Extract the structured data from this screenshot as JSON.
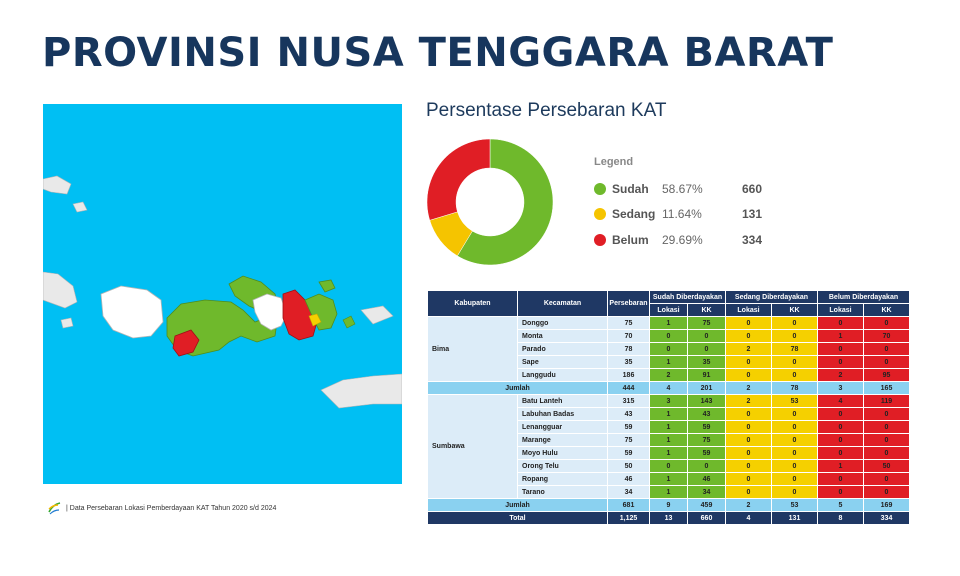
{
  "page": {
    "title": "PROVINSI NUSA TENGGARA BARAT"
  },
  "map": {
    "background_color": "#00bff3",
    "status_colors": {
      "sudah": "#6fb92c",
      "sedang": "#f5d000",
      "belum": "#e01e25"
    }
  },
  "source_note": "| Data Persebaran Lokasi Pemberdayaan KAT Tahun 2020 s/d 2024",
  "chart": {
    "title": "Persentase Persebaran KAT",
    "legend_title": "Legend",
    "legend": [
      {
        "name": "Sudah",
        "percent": "58.67%",
        "kk": "660",
        "color": "#6fb92c"
      },
      {
        "name": "Sedang",
        "percent": "11.64%",
        "kk": "131",
        "color": "#f5c400"
      },
      {
        "name": "Belum",
        "percent": "29.69%",
        "kk": "334",
        "color": "#e01e25"
      }
    ]
  },
  "chart_data": {
    "type": "pie",
    "categories": [
      "Sudah",
      "Sedang",
      "Belum"
    ],
    "values": [
      58.67,
      11.64,
      29.69
    ],
    "colors": [
      "#6fb92c",
      "#f5c400",
      "#e01e25"
    ],
    "title": "Persentase Persebaran KAT",
    "legend_position": "right"
  },
  "table": {
    "headers": {
      "kabupaten": "Kabupaten",
      "kecamatan": "Kecamatan",
      "persebaran": "Persebaran",
      "sudah": "Sudah Diberdayakan",
      "sedang": "Sedang Diberdayakan",
      "belum": "Belum Diberdayakan",
      "lokasi": "Lokasi",
      "kk": "KK"
    },
    "groups": [
      {
        "kabupaten": "Bima",
        "rows": [
          {
            "kecamatan": "Donggo",
            "persebaran": "75",
            "sudah_lokasi": "1",
            "sudah_kk": "75",
            "sedang_lokasi": "0",
            "sedang_kk": "0",
            "belum_lokasi": "0",
            "belum_kk": "0"
          },
          {
            "kecamatan": "Monta",
            "persebaran": "70",
            "sudah_lokasi": "0",
            "sudah_kk": "0",
            "sedang_lokasi": "0",
            "sedang_kk": "0",
            "belum_lokasi": "1",
            "belum_kk": "70"
          },
          {
            "kecamatan": "Parado",
            "persebaran": "78",
            "sudah_lokasi": "0",
            "sudah_kk": "0",
            "sedang_lokasi": "2",
            "sedang_kk": "78",
            "belum_lokasi": "0",
            "belum_kk": "0"
          },
          {
            "kecamatan": "Sape",
            "persebaran": "35",
            "sudah_lokasi": "1",
            "sudah_kk": "35",
            "sedang_lokasi": "0",
            "sedang_kk": "0",
            "belum_lokasi": "0",
            "belum_kk": "0"
          },
          {
            "kecamatan": "Langgudu",
            "persebaran": "186",
            "sudah_lokasi": "2",
            "sudah_kk": "91",
            "sedang_lokasi": "0",
            "sedang_kk": "0",
            "belum_lokasi": "2",
            "belum_kk": "95"
          }
        ],
        "jumlah": {
          "label": "Jumlah",
          "persebaran": "444",
          "sudah_lokasi": "4",
          "sudah_kk": "201",
          "sedang_lokasi": "2",
          "sedang_kk": "78",
          "belum_lokasi": "3",
          "belum_kk": "165"
        }
      },
      {
        "kabupaten": "Sumbawa",
        "rows": [
          {
            "kecamatan": "Batu Lanteh",
            "persebaran": "315",
            "sudah_lokasi": "3",
            "sudah_kk": "143",
            "sedang_lokasi": "2",
            "sedang_kk": "53",
            "belum_lokasi": "4",
            "belum_kk": "119"
          },
          {
            "kecamatan": "Labuhan Badas",
            "persebaran": "43",
            "sudah_lokasi": "1",
            "sudah_kk": "43",
            "sedang_lokasi": "0",
            "sedang_kk": "0",
            "belum_lokasi": "0",
            "belum_kk": "0"
          },
          {
            "kecamatan": "Lenangguar",
            "persebaran": "59",
            "sudah_lokasi": "1",
            "sudah_kk": "59",
            "sedang_lokasi": "0",
            "sedang_kk": "0",
            "belum_lokasi": "0",
            "belum_kk": "0"
          },
          {
            "kecamatan": "Marange",
            "persebaran": "75",
            "sudah_lokasi": "1",
            "sudah_kk": "75",
            "sedang_lokasi": "0",
            "sedang_kk": "0",
            "belum_lokasi": "0",
            "belum_kk": "0"
          },
          {
            "kecamatan": "Moyo Hulu",
            "persebaran": "59",
            "sudah_lokasi": "1",
            "sudah_kk": "59",
            "sedang_lokasi": "0",
            "sedang_kk": "0",
            "belum_lokasi": "0",
            "belum_kk": "0"
          },
          {
            "kecamatan": "Orong Telu",
            "persebaran": "50",
            "sudah_lokasi": "0",
            "sudah_kk": "0",
            "sedang_lokasi": "0",
            "sedang_kk": "0",
            "belum_lokasi": "1",
            "belum_kk": "50"
          },
          {
            "kecamatan": "Ropang",
            "persebaran": "46",
            "sudah_lokasi": "1",
            "sudah_kk": "46",
            "sedang_lokasi": "0",
            "sedang_kk": "0",
            "belum_lokasi": "0",
            "belum_kk": "0"
          },
          {
            "kecamatan": "Tarano",
            "persebaran": "34",
            "sudah_lokasi": "1",
            "sudah_kk": "34",
            "sedang_lokasi": "0",
            "sedang_kk": "0",
            "belum_lokasi": "0",
            "belum_kk": "0"
          }
        ],
        "jumlah": {
          "label": "Jumlah",
          "persebaran": "681",
          "sudah_lokasi": "9",
          "sudah_kk": "459",
          "sedang_lokasi": "2",
          "sedang_kk": "53",
          "belum_lokasi": "5",
          "belum_kk": "169"
        }
      }
    ],
    "total": {
      "label": "Total",
      "persebaran": "1,125",
      "sudah_lokasi": "13",
      "sudah_kk": "660",
      "sedang_lokasi": "4",
      "sedang_kk": "131",
      "belum_lokasi": "8",
      "belum_kk": "334"
    }
  }
}
